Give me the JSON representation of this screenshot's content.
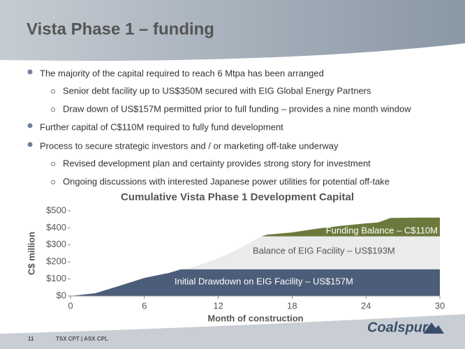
{
  "header": {
    "title": "Vista Phase 1 – funding"
  },
  "bullets": [
    {
      "text": "The majority of the capital required to reach 6 Mtpa has been arranged",
      "sub": [
        "Senior debt facility up to US$350M secured with EIG Global Energy Partners",
        "Draw down of US$157M permitted prior to full funding – provides a nine month window"
      ]
    },
    {
      "text": "Further capital of C$110M required to fully fund development",
      "sub": []
    },
    {
      "text": "Process to secure strategic investors and / or marketing off-take underway",
      "sub": [
        "Revised development plan and certainty provides strong story for investment",
        "Ongoing discussions with interested Japanese power utilities for potential off-take"
      ]
    }
  ],
  "chart_data": {
    "type": "area",
    "stacked": true,
    "title": "Cumulative Vista Phase 1 Development Capital",
    "x_label": "Month of construction",
    "y_label": "C$ million",
    "x": [
      0,
      2,
      4,
      6,
      8,
      9,
      10,
      12,
      14,
      15.5,
      16,
      18,
      20,
      22,
      24,
      25,
      26,
      28,
      30
    ],
    "series": [
      {
        "name": "Initial Drawdown on EIG Facility – US$157M",
        "color": "#4b5d78",
        "values": [
          0,
          16,
          60,
          106,
          135,
          157,
          157,
          157,
          157,
          157,
          157,
          157,
          157,
          157,
          157,
          157,
          157,
          157,
          157
        ]
      },
      {
        "name": "Balance of EIG Facility – US$193M",
        "color": "#ebebeb",
        "values": [
          0,
          0,
          0,
          0,
          0,
          0,
          13,
          64,
          133,
          193,
          193,
          193,
          193,
          193,
          193,
          193,
          193,
          193,
          193
        ]
      },
      {
        "name": "Funding Balance – C$110M",
        "color": "#6b7a3c",
        "values": [
          0,
          0,
          0,
          0,
          0,
          0,
          0,
          0,
          0,
          0,
          10,
          23,
          45,
          62,
          76,
          82,
          108,
          110,
          110
        ]
      }
    ],
    "xlim": [
      0,
      30
    ],
    "xticks": [
      0,
      6,
      12,
      18,
      24,
      30
    ],
    "ylim": [
      0,
      500
    ],
    "yticks": [
      {
        "value": 0,
        "label": "$0"
      },
      {
        "value": 100,
        "label": "$100"
      },
      {
        "value": 200,
        "label": "$200"
      },
      {
        "value": 300,
        "label": "$300"
      },
      {
        "value": 400,
        "label": "$400"
      },
      {
        "value": 500,
        "label": "$500"
      }
    ]
  },
  "footer": {
    "page": "11",
    "tickers": "TSX CPT | ASX CPL",
    "logo": "Coalspur"
  }
}
